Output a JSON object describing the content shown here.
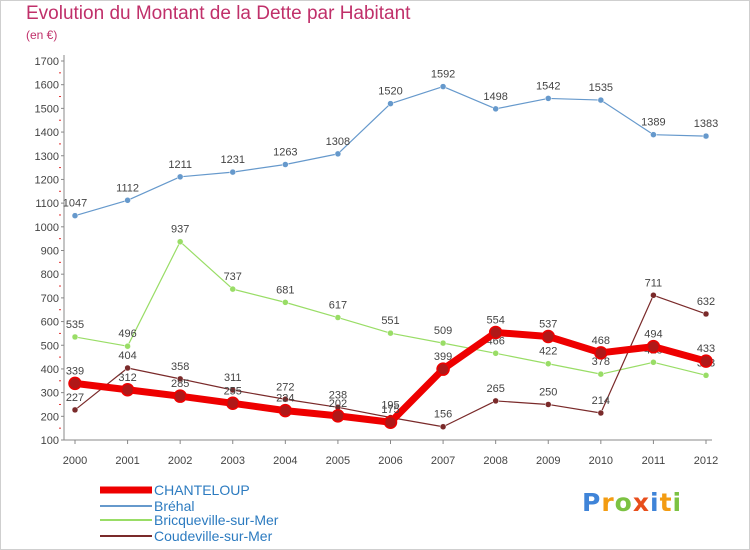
{
  "chart_data": {
    "type": "line",
    "title": "Evolution du Montant de la Dette par Habitant",
    "subtitle": "(en €)",
    "x": [
      "2000",
      "2001",
      "2002",
      "2003",
      "2004",
      "2005",
      "2006",
      "2007",
      "2008",
      "2009",
      "2010",
      "2011",
      "2012"
    ],
    "ylim": [
      100,
      1700
    ],
    "yticks": [
      100,
      200,
      300,
      400,
      500,
      600,
      700,
      800,
      900,
      1000,
      1100,
      1200,
      1300,
      1400,
      1500,
      1600,
      1700
    ],
    "grid": false,
    "legend_position": "bottom-left",
    "series": [
      {
        "name": "CHANTELOUP",
        "color": "#ee0000",
        "values": [
          339,
          312,
          285,
          255,
          224,
          202,
          175,
          399,
          554,
          537,
          468,
          494,
          433
        ]
      },
      {
        "name": "Bréhal",
        "color": "#6699cc",
        "values": [
          1047,
          1112,
          1211,
          1231,
          1263,
          1308,
          1520,
          1592,
          1498,
          1542,
          1535,
          1389,
          1383
        ]
      },
      {
        "name": "Bricqueville-sur-Mer",
        "color": "#99dd66",
        "values": [
          535,
          496,
          937,
          737,
          681,
          617,
          551,
          509,
          466,
          422,
          378,
          428,
          373
        ]
      },
      {
        "name": "Coudeville-sur-Mer",
        "color": "#7a2a2a",
        "values": [
          227,
          404,
          358,
          311,
          272,
          238,
          195,
          156,
          265,
          250,
          214,
          711,
          632
        ]
      }
    ]
  },
  "logo": {
    "letters": [
      {
        "ch": "P",
        "color": "#3f84d8"
      },
      {
        "ch": "r",
        "color": "#f39c12"
      },
      {
        "ch": "o",
        "color": "#7cc242"
      },
      {
        "ch": "x",
        "color": "#e84e1b"
      },
      {
        "ch": "i",
        "color": "#3f84d8"
      },
      {
        "ch": "t",
        "color": "#f39c12"
      },
      {
        "ch": "i",
        "color": "#7cc242"
      }
    ]
  }
}
